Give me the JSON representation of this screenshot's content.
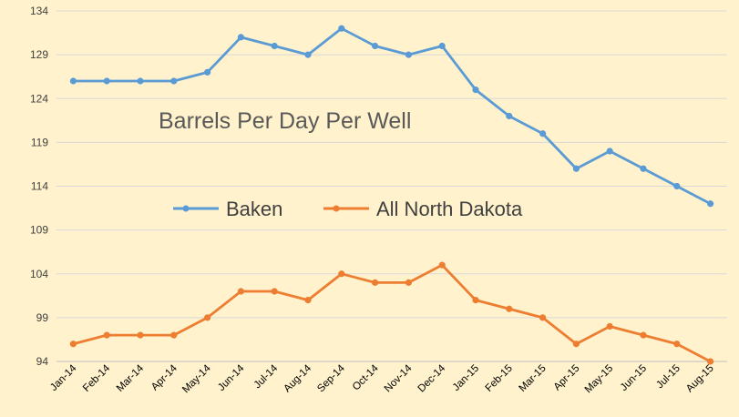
{
  "chart_data": {
    "type": "line",
    "title": "Barrels Per Day Per Well",
    "xlabel": "",
    "ylabel": "",
    "ylim": [
      94,
      134
    ],
    "yticks": [
      94,
      99,
      104,
      109,
      114,
      119,
      124,
      129,
      134
    ],
    "grid": true,
    "legend_position": "inside-middle-left",
    "categories": [
      "Jan-14",
      "Feb-14",
      "Mar-14",
      "Apr-14",
      "May-14",
      "Jun-14",
      "Jul-14",
      "Aug-14",
      "Sep-14",
      "Oct-14",
      "Nov-14",
      "Dec-14",
      "Jan-15",
      "Feb-15",
      "Mar-15",
      "Apr-15",
      "May-15",
      "Jun-15",
      "Jul-15",
      "Aug-15"
    ],
    "series": [
      {
        "name": "Baken",
        "color": "#5B9BD5",
        "values": [
          126,
          126,
          126,
          126,
          127,
          131,
          130,
          129,
          132,
          130,
          129,
          130,
          125,
          122,
          120,
          116,
          118,
          116,
          114,
          112
        ]
      },
      {
        "name": "All North Dakota",
        "color": "#ED7D31",
        "values": [
          96,
          97,
          97,
          97,
          99,
          102,
          102,
          101,
          104,
          103,
          103,
          105,
          101,
          100,
          99,
          96,
          98,
          97,
          96,
          94
        ]
      }
    ]
  }
}
